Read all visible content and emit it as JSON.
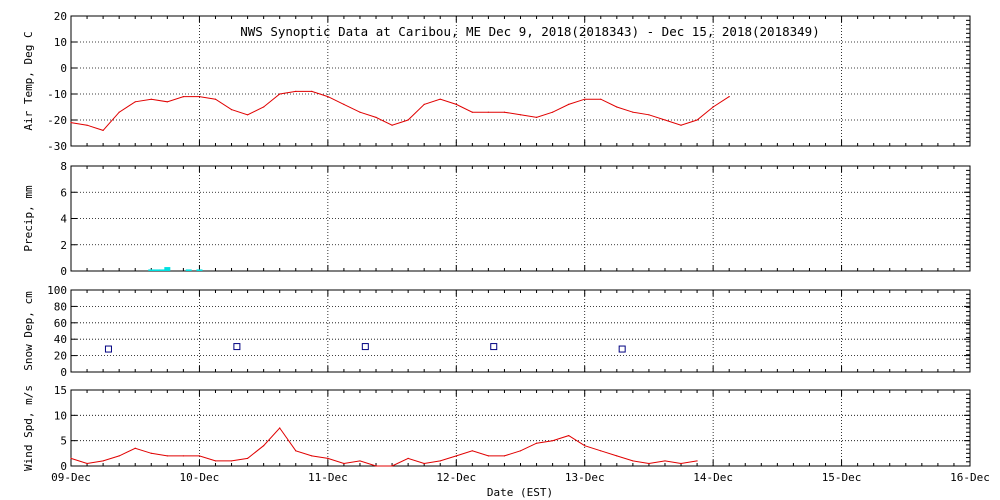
{
  "chart_data": [
    {
      "type": "line",
      "title": "NWS Synoptic Data at Caribou, ME   Dec  9, 2018(2018343) - Dec 15, 2018(2018349)",
      "ylabel": "Air Temp, Deg C",
      "ylim": [
        -30,
        20
      ],
      "yticks": [
        "20",
        "10",
        "0",
        "-10",
        "-20",
        "-30"
      ],
      "xlim": [
        "2018-12-09",
        "2018-12-16"
      ],
      "grid": true,
      "series": [
        {
          "color": "#e00000",
          "x": [
            "12-09 00:00",
            "12-09 03:00",
            "12-09 06:00",
            "12-09 09:00",
            "12-09 12:00",
            "12-09 15:00",
            "12-09 18:00",
            "12-09 21:00",
            "12-10 00:00",
            "12-10 03:00",
            "12-10 06:00",
            "12-10 09:00",
            "12-10 12:00",
            "12-10 15:00",
            "12-10 18:00",
            "12-10 21:00",
            "12-11 00:00",
            "12-11 03:00",
            "12-11 06:00",
            "12-11 09:00",
            "12-11 12:00",
            "12-11 15:00",
            "12-11 18:00",
            "12-11 21:00",
            "12-12 00:00",
            "12-12 03:00",
            "12-12 06:00",
            "12-12 09:00",
            "12-12 12:00",
            "12-12 15:00",
            "12-12 18:00",
            "12-12 21:00",
            "12-13 00:00",
            "12-13 03:00",
            "12-13 06:00",
            "12-13 09:00",
            "12-13 12:00",
            "12-13 15:00",
            "12-13 18:00",
            "12-13 21:00",
            "12-14 00:00",
            "12-14 03:00"
          ],
          "values": [
            -21,
            -22,
            -24,
            -17,
            -13,
            -12,
            -13,
            -11,
            -11,
            -12,
            -16,
            -18,
            -15,
            -10,
            -9,
            -9,
            -11,
            -14,
            -17,
            -19,
            -22,
            -20,
            -14,
            -12,
            -14,
            -17,
            -17,
            -17,
            -18,
            -19,
            -17,
            -14,
            -12,
            -12,
            -15,
            -17,
            -18,
            -20,
            -22,
            -20,
            -15,
            -11
          ]
        }
      ]
    },
    {
      "type": "bar",
      "ylabel": "Precip, mm",
      "ylim": [
        0,
        8
      ],
      "yticks": [
        "8",
        "6",
        "4",
        "2",
        "0"
      ],
      "grid": true,
      "series": [
        {
          "color": "#00e0e0",
          "x": [
            "12-09 15:00",
            "12-09 16:00",
            "12-09 17:00",
            "12-09 18:00",
            "12-09 22:00",
            "12-10 00:00"
          ],
          "values": [
            0.05,
            0.05,
            0.1,
            0.3,
            0.05,
            0.05
          ]
        }
      ]
    },
    {
      "type": "scatter",
      "ylabel": "Snow Dep, cm",
      "ylim": [
        0,
        100
      ],
      "yticks": [
        "100",
        "80",
        "60",
        "40",
        "20",
        "0"
      ],
      "grid": true,
      "series": [
        {
          "color": "#000080",
          "x": [
            "12-09 07:00",
            "12-10 07:00",
            "12-11 07:00",
            "12-12 07:00",
            "12-13 07:00"
          ],
          "values": [
            28,
            31,
            31,
            31,
            28
          ]
        }
      ]
    },
    {
      "type": "line",
      "ylabel": "Wind Spd, m/s",
      "ylim": [
        0,
        15
      ],
      "yticks": [
        "15",
        "10",
        "5",
        "0"
      ],
      "grid": true,
      "xlabel": "Date (EST)",
      "xticks": [
        "09-Dec",
        "10-Dec",
        "11-Dec",
        "12-Dec",
        "13-Dec",
        "14-Dec",
        "15-Dec",
        "16-Dec"
      ],
      "series": [
        {
          "color": "#e00000",
          "x": [
            "12-09 00:00",
            "12-09 03:00",
            "12-09 06:00",
            "12-09 09:00",
            "12-09 12:00",
            "12-09 15:00",
            "12-09 18:00",
            "12-09 21:00",
            "12-10 00:00",
            "12-10 03:00",
            "12-10 06:00",
            "12-10 09:00",
            "12-10 12:00",
            "12-10 15:00",
            "12-10 18:00",
            "12-10 21:00",
            "12-11 00:00",
            "12-11 03:00",
            "12-11 06:00",
            "12-11 09:00",
            "12-11 12:00",
            "12-11 15:00",
            "12-11 18:00",
            "12-11 21:00",
            "12-12 00:00",
            "12-12 03:00",
            "12-12 06:00",
            "12-12 09:00",
            "12-12 12:00",
            "12-12 15:00",
            "12-12 18:00",
            "12-12 21:00",
            "12-13 00:00",
            "12-13 03:00",
            "12-13 06:00",
            "12-13 09:00",
            "12-13 12:00",
            "12-13 15:00",
            "12-13 18:00",
            "12-13 21:00"
          ],
          "values": [
            1.5,
            0.5,
            1,
            2,
            3.5,
            2.5,
            2,
            2,
            2,
            1,
            1,
            1.5,
            4,
            7.5,
            3,
            2,
            1.5,
            0.5,
            1,
            0,
            0,
            1.5,
            0.5,
            1,
            2,
            3,
            2,
            2,
            3,
            4.5,
            5,
            6,
            4,
            3,
            2,
            1,
            0.5,
            1,
            0.5,
            1
          ]
        }
      ]
    }
  ]
}
